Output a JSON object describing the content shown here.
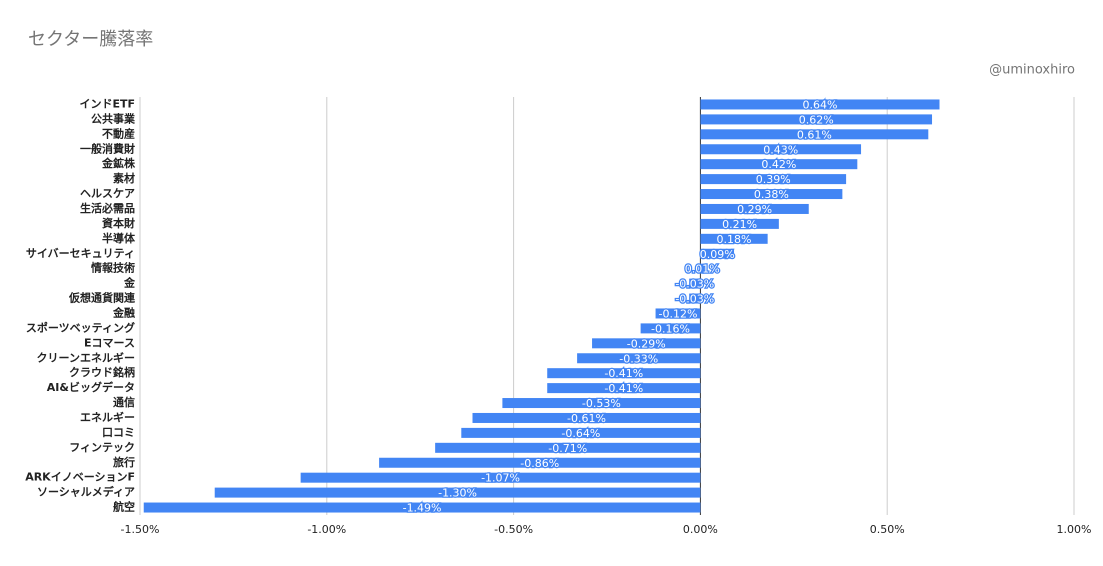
{
  "chart_data": {
    "type": "hbar",
    "title": "セクター騰落率",
    "watermark": "@uminoxhiro",
    "color": "#4285f4",
    "grid": true,
    "categories": [
      "インドETF",
      "公共事業",
      "不動産",
      "一般消費財",
      "金鉱株",
      "素材",
      "ヘルスケア",
      "生活必需品",
      "資本財",
      "半導体",
      "サイバーセキュリティ",
      "情報技術",
      "金",
      "仮想通貨関連",
      "金融",
      "スポーツベッティング",
      "Eコマース",
      "クリーンエネルギー",
      "クラウド銘柄",
      "AI&ビッグデータ",
      "通信",
      "エネルギー",
      "口コミ",
      "フィンテック",
      "旅行",
      "ARKイノベーションF",
      "ソーシャルメディア",
      "航空"
    ],
    "values": [
      0.64,
      0.62,
      0.61,
      0.43,
      0.42,
      0.39,
      0.38,
      0.29,
      0.21,
      0.18,
      0.09,
      0.01,
      -0.03,
      -0.03,
      -0.12,
      -0.16,
      -0.29,
      -0.33,
      -0.41,
      -0.41,
      -0.53,
      -0.61,
      -0.64,
      -0.71,
      -0.86,
      -1.07,
      -1.3,
      -1.49
    ],
    "value_labels": [
      "0.64%",
      "0.62%",
      "0.61%",
      "0.43%",
      "0.42%",
      "0.39%",
      "0.38%",
      "0.29%",
      "0.21%",
      "0.18%",
      "0.09%",
      "0.01%",
      "-0.03%",
      "-0.03%",
      "-0.12%",
      "-0.16%",
      "-0.29%",
      "-0.33%",
      "-0.41%",
      "-0.41%",
      "-0.53%",
      "-0.61%",
      "-0.64%",
      "-0.71%",
      "-0.86%",
      "-1.07%",
      "-1.30%",
      "-1.49%"
    ],
    "xlim": [
      -1.5,
      1.0
    ],
    "xticks": [
      {
        "value": -1.5,
        "label": "-1.50%"
      },
      {
        "value": -1.0,
        "label": "-1.00%"
      },
      {
        "value": -0.5,
        "label": "-0.50%"
      },
      {
        "value": 0,
        "label": "0.00%"
      },
      {
        "value": 0.5,
        "label": "0.50%"
      },
      {
        "value": 1.0,
        "label": "1.00%"
      }
    ]
  }
}
